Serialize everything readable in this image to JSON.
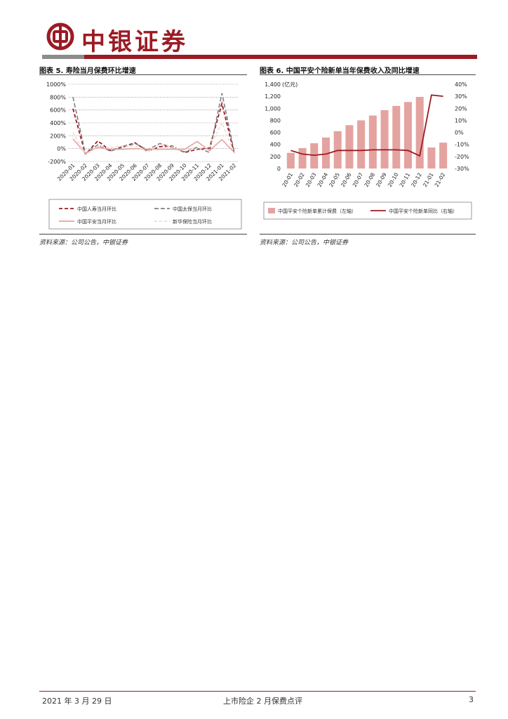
{
  "header": {
    "brand": "中银证券"
  },
  "figure5": {
    "title": "图表 5. 寿险当月保费环比增速",
    "source": "资料来源：公司公告，中银证券",
    "legend": [
      "中国人寿当月环比",
      "中国太保当月环比",
      "中国平安当月环比",
      "新华保险当月环比"
    ]
  },
  "figure6": {
    "title": "图表 6. 中国平安个险新单当年保费收入及同比增速",
    "source": "资料来源：公司公告，中银证券",
    "unit": "(亿元)",
    "legend": [
      "中国平安个险新单累计保费（左轴）",
      "中国平安个险新单同比（右轴）"
    ]
  },
  "footer": {
    "date": "2021 年 3 月 29 日",
    "doc_title": "上市险企 2 月保费点评",
    "page": "3"
  },
  "chart_data": [
    {
      "type": "line",
      "categories": [
        "2020-01",
        "2020-02",
        "2020-03",
        "2020-04",
        "2020-05",
        "2020-06",
        "2020-07",
        "2020-08",
        "2020-09",
        "2020-10",
        "2020-11",
        "2020-12",
        "2021-01",
        "2021-02"
      ],
      "ylim": [
        -200,
        1000
      ],
      "yticks": [
        "-200%",
        "0%",
        "200%",
        "400%",
        "600%",
        "800%",
        "1000%"
      ],
      "grid": true,
      "legend_position": "bottom",
      "series": [
        {
          "name": "中国人寿当月环比",
          "color": "#9b1b24",
          "dash": "5,3",
          "values": [
            620,
            -90,
            120,
            -30,
            30,
            90,
            -40,
            30,
            40,
            -60,
            -10,
            10,
            700,
            -80
          ]
        },
        {
          "name": "中国太保当月环比",
          "color": "#808080",
          "dash": "6,3",
          "values": [
            800,
            -80,
            60,
            -40,
            20,
            80,
            -20,
            80,
            20,
            -50,
            20,
            -60,
            860,
            -60
          ]
        },
        {
          "name": "中国平安当月环比",
          "color": "#e4a3a0",
          "dash": "",
          "values": [
            150,
            -70,
            20,
            -10,
            -10,
            0,
            -10,
            -10,
            -10,
            -10,
            110,
            -30,
            140,
            -60
          ]
        },
        {
          "name": "新华保险当月环比",
          "color": "#f4d7d4",
          "dash": "4,3",
          "values": [
            250,
            -100,
            40,
            20,
            40,
            40,
            -50,
            60,
            30,
            -40,
            0,
            20,
            400,
            -80
          ]
        }
      ]
    },
    {
      "type": "bar",
      "categories": [
        "20-01",
        "20-02",
        "20-03",
        "20-04",
        "20-05",
        "20-06",
        "20-07",
        "20-08",
        "20-09",
        "20-10",
        "20-11",
        "20-12",
        "21-01",
        "21-02"
      ],
      "ylim": [
        0,
        1400
      ],
      "y2lim": [
        -30,
        40
      ],
      "yticks": [
        "0",
        "200",
        "400",
        "600",
        "800",
        "1,000",
        "1,200",
        "1,400"
      ],
      "y2ticks": [
        "-30%",
        "-20%",
        "-10%",
        "0%",
        "10%",
        "20%",
        "30%",
        "40%"
      ],
      "legend_position": "bottom",
      "series": [
        {
          "name": "中国平安个险新单累计保费（左轴）",
          "type": "bar",
          "axis": "left",
          "color": "#e4a3a0",
          "values": [
            260,
            340,
            420,
            515,
            620,
            720,
            800,
            880,
            970,
            1040,
            1105,
            1190,
            350,
            430
          ]
        },
        {
          "name": "中国平安个险新单同比（右轴）",
          "type": "line",
          "axis": "right",
          "color": "#9b1b24",
          "values": [
            -15,
            -18,
            -19,
            -18,
            -15,
            -15,
            -15,
            -14.5,
            -14.5,
            -14.5,
            -15,
            -19.5,
            31,
            30
          ]
        }
      ]
    }
  ]
}
